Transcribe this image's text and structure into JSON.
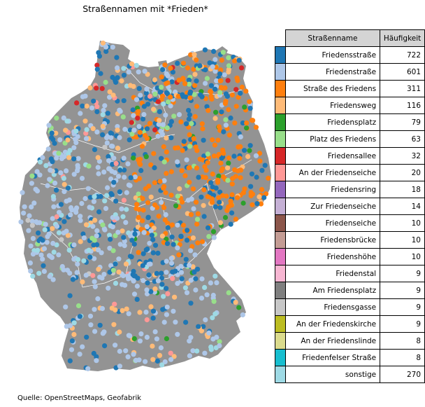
{
  "title": "Straßennamen mit *Frieden*",
  "source": "Quelle: OpenStreetMaps, Geofabrik",
  "table": {
    "header_name": "Straßenname",
    "header_count": "Häufigkeit",
    "rows": [
      {
        "name": "Friedensstraße",
        "count": "722",
        "color": "#1f77b4"
      },
      {
        "name": "Friedenstraße",
        "count": "601",
        "color": "#aec7e8"
      },
      {
        "name": "Straße des Friedens",
        "count": "311",
        "color": "#ff7f0e"
      },
      {
        "name": "Friedensweg",
        "count": "116",
        "color": "#ffbb78"
      },
      {
        "name": "Friedensplatz",
        "count": "79",
        "color": "#2ca02c"
      },
      {
        "name": "Platz des Friedens",
        "count": "63",
        "color": "#98df8a"
      },
      {
        "name": "Friedensallee",
        "count": "32",
        "color": "#d62728"
      },
      {
        "name": "An der Friedenseiche",
        "count": "20",
        "color": "#ff9896"
      },
      {
        "name": "Friedensring",
        "count": "18",
        "color": "#9467bd"
      },
      {
        "name": "Zur Friedenseiche",
        "count": "14",
        "color": "#c5b0d5"
      },
      {
        "name": "Friedenseiche",
        "count": "10",
        "color": "#8c564b"
      },
      {
        "name": "Friedensbrücke",
        "count": "10",
        "color": "#c49c94"
      },
      {
        "name": "Friedenshöhe",
        "count": "10",
        "color": "#e377c2"
      },
      {
        "name": "Friedenstal",
        "count": "9",
        "color": "#f7b6d2"
      },
      {
        "name": "Am Friedensplatz",
        "count": "9",
        "color": "#7f7f7f"
      },
      {
        "name": "Friedensgasse",
        "count": "9",
        "color": "#c7c7c7"
      },
      {
        "name": "An der Friedenskirche",
        "count": "9",
        "color": "#bcbd22"
      },
      {
        "name": "An der Friedenslinde",
        "count": "8",
        "color": "#dbdb8d"
      },
      {
        "name": "Friedenfelser Straße",
        "count": "8",
        "color": "#17becf"
      },
      {
        "name": "sonstige",
        "count": "270",
        "color": "#9edae5"
      }
    ]
  },
  "map": {
    "land_color": "#939393",
    "border_color": "#ffffff"
  }
}
